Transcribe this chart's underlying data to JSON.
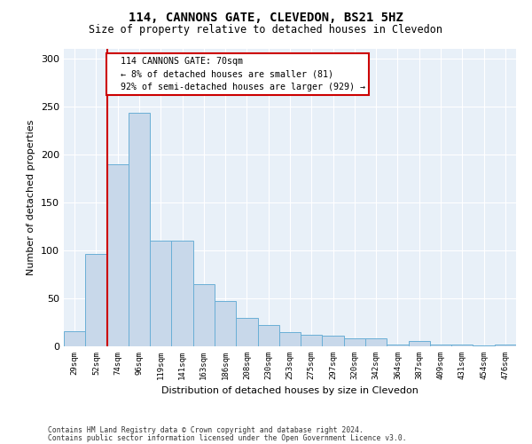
{
  "title": "114, CANNONS GATE, CLEVEDON, BS21 5HZ",
  "subtitle": "Size of property relative to detached houses in Clevedon",
  "xlabel": "Distribution of detached houses by size in Clevedon",
  "ylabel": "Number of detached properties",
  "bar_color": "#c8d8ea",
  "bar_edge_color": "#6aafd6",
  "background_color": "#ffffff",
  "plot_bg_color": "#e8f0f8",
  "annotation_box_color": "#ffffff",
  "annotation_border_color": "#cc0000",
  "red_line_color": "#cc0000",
  "categories": [
    "29sqm",
    "52sqm",
    "74sqm",
    "96sqm",
    "119sqm",
    "141sqm",
    "163sqm",
    "186sqm",
    "208sqm",
    "230sqm",
    "253sqm",
    "275sqm",
    "297sqm",
    "320sqm",
    "342sqm",
    "364sqm",
    "387sqm",
    "409sqm",
    "431sqm",
    "454sqm",
    "476sqm"
  ],
  "values": [
    16,
    96,
    190,
    243,
    110,
    110,
    65,
    47,
    30,
    22,
    15,
    12,
    11,
    8,
    8,
    2,
    6,
    2,
    2,
    1,
    2
  ],
  "property_label": "114 CANNONS GATE: 70sqm",
  "pct_smaller": "8% of detached houses are smaller (81)",
  "pct_larger": "92% of semi-detached houses are larger (929)",
  "red_line_x": 1.5,
  "ylim": [
    0,
    310
  ],
  "yticks": [
    0,
    50,
    100,
    150,
    200,
    250,
    300
  ],
  "footer1": "Contains HM Land Registry data © Crown copyright and database right 2024.",
  "footer2": "Contains public sector information licensed under the Open Government Licence v3.0."
}
